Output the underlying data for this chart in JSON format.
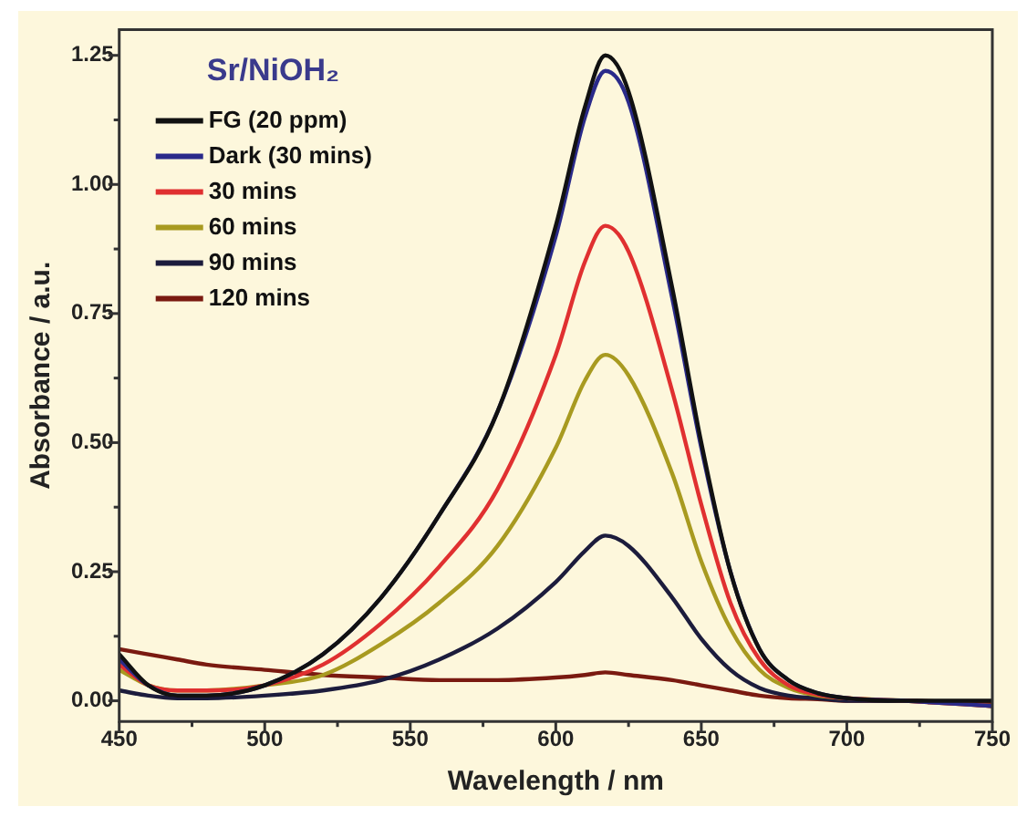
{
  "chart_data": {
    "type": "line",
    "title": "Sr/NiOH₂",
    "xlabel": "Wavelength / nm",
    "ylabel": "Absorbance / a.u.",
    "x": [
      450,
      460,
      470,
      480,
      500,
      520,
      540,
      560,
      580,
      600,
      610,
      617,
      625,
      640,
      650,
      660,
      670,
      680,
      690,
      700,
      720,
      750
    ],
    "xlim": [
      450,
      750
    ],
    "xticks": [
      450,
      {
        "value": 475,
        "label": null
      },
      500,
      {
        "value": 525,
        "label": null
      },
      550,
      {
        "value": 575,
        "label": null
      },
      600,
      {
        "value": 625,
        "label": null
      },
      650,
      {
        "value": 675,
        "label": null
      },
      700,
      {
        "value": 725,
        "label": null
      },
      750
    ],
    "ylim": [
      -0.04,
      1.3
    ],
    "yticks": [
      {
        "value": 0,
        "label": "0.00"
      },
      {
        "value": 0.125,
        "label": null
      },
      {
        "value": 0.25,
        "label": "0.25"
      },
      {
        "value": 0.375,
        "label": null
      },
      {
        "value": 0.5,
        "label": "0.50"
      },
      {
        "value": 0.625,
        "label": null
      },
      {
        "value": 0.75,
        "label": "0.75"
      },
      {
        "value": 0.875,
        "label": null
      },
      {
        "value": 1,
        "label": "1.00"
      },
      {
        "value": 1.125,
        "label": null
      },
      {
        "value": 1.25,
        "label": "1.25"
      }
    ],
    "grid": false,
    "legend": "top left",
    "marker": "none",
    "line_style": "solid",
    "series": [
      {
        "name": "FG (20 ppm)",
        "color": "#111111",
        "values": [
          0.09,
          0.03,
          0.01,
          0.01,
          0.03,
          0.09,
          0.2,
          0.36,
          0.56,
          0.92,
          1.15,
          1.25,
          1.18,
          0.8,
          0.5,
          0.25,
          0.1,
          0.04,
          0.015,
          0.005,
          0,
          0
        ]
      },
      {
        "name": "Dark (30 mins)",
        "color": "#2a2a8a",
        "values": [
          0.08,
          0.03,
          0.01,
          0.01,
          0.03,
          0.09,
          0.2,
          0.36,
          0.56,
          0.9,
          1.13,
          1.22,
          1.16,
          0.78,
          0.49,
          0.25,
          0.1,
          0.04,
          0.015,
          0.005,
          0,
          -0.01
        ]
      },
      {
        "name": "30 mins",
        "color": "#e03030",
        "values": [
          0.07,
          0.03,
          0.02,
          0.02,
          0.03,
          0.07,
          0.15,
          0.26,
          0.41,
          0.67,
          0.85,
          0.92,
          0.87,
          0.6,
          0.38,
          0.19,
          0.08,
          0.03,
          0.012,
          0.005,
          0,
          -0.01
        ]
      },
      {
        "name": "60 mins",
        "color": "#a89a20",
        "values": [
          0.06,
          0.03,
          0.02,
          0.02,
          0.03,
          0.05,
          0.11,
          0.19,
          0.3,
          0.49,
          0.62,
          0.67,
          0.63,
          0.44,
          0.27,
          0.14,
          0.06,
          0.025,
          0.01,
          0.005,
          0,
          -0.01
        ]
      },
      {
        "name": "90 mins",
        "color": "#1c1c3c",
        "values": [
          0.02,
          0.01,
          0.005,
          0.005,
          0.01,
          0.02,
          0.04,
          0.08,
          0.14,
          0.23,
          0.29,
          0.32,
          0.3,
          0.2,
          0.12,
          0.06,
          0.025,
          0.01,
          0.005,
          0,
          0,
          -0.01
        ]
      },
      {
        "name": "120 mins",
        "color": "#7a1a10",
        "values": [
          0.1,
          0.09,
          0.08,
          0.07,
          0.06,
          0.05,
          0.045,
          0.04,
          0.04,
          0.045,
          0.05,
          0.055,
          0.05,
          0.04,
          0.03,
          0.02,
          0.01,
          0.005,
          0.003,
          0,
          0,
          -0.005
        ]
      }
    ]
  }
}
